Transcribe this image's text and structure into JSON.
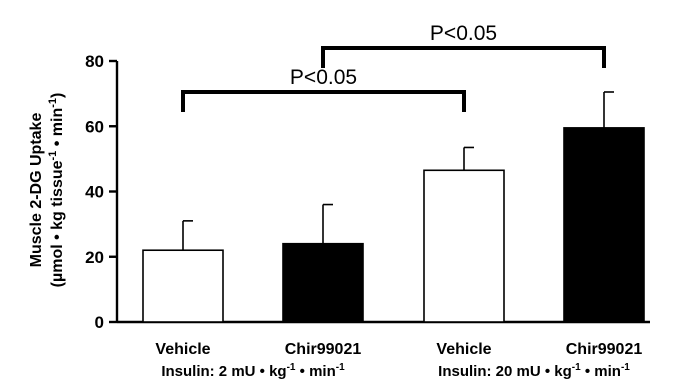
{
  "chart_data": {
    "type": "bar",
    "title": "",
    "ylabel_line1": "Muscle 2-DG Uptake",
    "ylabel_line2_parts": [
      "(µmol • kg tissue",
      "-1",
      " • min",
      "-1",
      ")"
    ],
    "ylim": [
      0,
      80
    ],
    "yticks": [
      "0",
      "20",
      "40",
      "60",
      "80"
    ],
    "categories": [
      "Vehicle",
      "Chir99021",
      "Vehicle",
      "Chir99021"
    ],
    "values": [
      22,
      24,
      46.5,
      59.5
    ],
    "errors": [
      9,
      12,
      7,
      11
    ],
    "bar_colors": [
      "#ffffff",
      "#000000",
      "#ffffff",
      "#000000"
    ],
    "groups": [
      {
        "parts": [
          "Insulin:  2 mU • kg",
          "-1",
          " • min",
          "-1"
        ],
        "bars": [
          0,
          1
        ]
      },
      {
        "parts": [
          "Insulin:  20 mU • kg",
          "-1",
          " • min",
          "-1"
        ],
        "bars": [
          2,
          3
        ]
      }
    ],
    "significance": [
      {
        "label": "P<0.05",
        "from": 0,
        "to": 2,
        "y": 70.5
      },
      {
        "label": "P<0.05",
        "from": 1,
        "to": 3,
        "y": 84
      }
    ]
  }
}
